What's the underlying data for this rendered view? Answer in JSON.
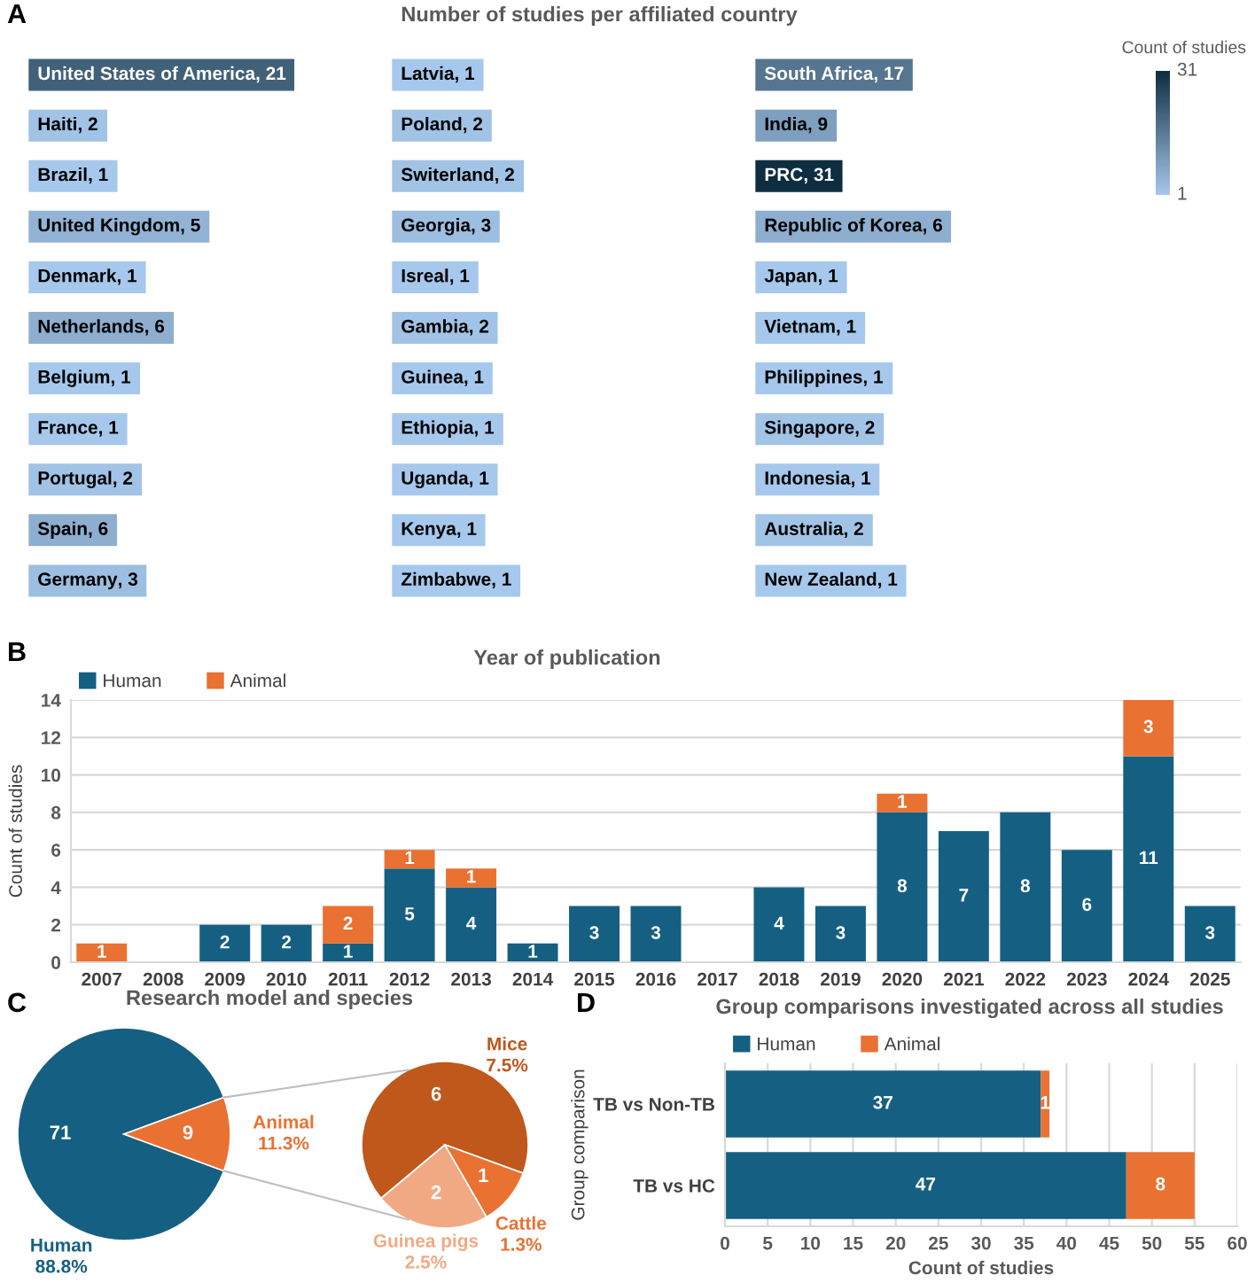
{
  "chart_data": [
    {
      "type": "other",
      "title": "Number of studies per affiliated country",
      "annotations": [
        "A",
        "31",
        "1"
      ],
      "categories": [
        "United States of America",
        "Haiti",
        "Brazil",
        "United Kingdom",
        "Denmark",
        "Netherlands",
        "Belgium",
        "France",
        "Portugal",
        "Spain",
        "Germany",
        "Latvia",
        "Poland",
        "Switerland",
        "Georgia",
        "Isreal",
        "Gambia",
        "Guinea",
        "Ethiopia",
        "Uganda",
        "Kenya",
        "Zimbabwe",
        "South Africa",
        "India",
        "PRC",
        "Republic of Korea",
        "Japan",
        "Vietnam",
        "Philippines",
        "Singapore",
        "Indonesia",
        "Australia",
        "New Zealand"
      ],
      "values": [
        21,
        2,
        1,
        5,
        1,
        6,
        1,
        1,
        2,
        6,
        3,
        1,
        2,
        2,
        3,
        1,
        2,
        1,
        1,
        1,
        1,
        1,
        17,
        9,
        31,
        6,
        1,
        1,
        1,
        2,
        1,
        2,
        1
      ],
      "value_labels": [
        ", 21",
        ", 2",
        ", 1",
        ", 5",
        ", 1",
        ", 6",
        ", 1",
        ", 1",
        ", 2",
        ", 6",
        ", 3",
        ", 1",
        ", 2",
        ", 2",
        ", 3",
        ", 1",
        ", 2",
        ", 1",
        ", 1",
        ", 1",
        ", 1",
        ", 1",
        ", 17",
        ", 9",
        ", 31",
        ", 6",
        ", 1",
        ", 1",
        ", 1",
        ", 2",
        ", 1",
        ", 2",
        ", 1"
      ],
      "colors": [
        "#416179",
        "#a1c3e6",
        "#a6c8ec",
        "#92b3d5",
        "#a6c8ec",
        "#8daecf",
        "#a6c8ec",
        "#a6c8ec",
        "#a1c3e6",
        "#8daecf",
        "#9cbee0",
        "#a6c8ec",
        "#a1c3e6",
        "#a1c3e6",
        "#9cbee0",
        "#a6c8ec",
        "#a1c3e6",
        "#a6c8ec",
        "#a6c8ec",
        "#a6c8ec",
        "#a6c8ec",
        "#a6c8ec",
        "#567590",
        "#7e9fbe",
        "#0f2d40",
        "#8daecf",
        "#a6c8ec",
        "#a6c8ec",
        "#a6c8ec",
        "#a1c3e6",
        "#a6c8ec",
        "#a1c3e6",
        "#a6c8ec"
      ],
      "clabel": "Count of studies"
    },
    {
      "type": "bar",
      "title": "Year of publication",
      "annotations": [
        "B"
      ],
      "ylabel": "Count of studies",
      "categories": [
        "2007",
        "2008",
        "2009",
        "2010",
        "2011",
        "2012",
        "2013",
        "2014",
        "2015",
        "2016",
        "2017",
        "2018",
        "2019",
        "2020",
        "2021",
        "2022",
        "2023",
        "2024",
        "2025"
      ],
      "stacked": true,
      "series": [
        {
          "name": "Human",
          "color": "#156082",
          "values": [
            null,
            null,
            2,
            2,
            1,
            5,
            4,
            1,
            3,
            3,
            null,
            4,
            3,
            8,
            7,
            8,
            6,
            11,
            3
          ]
        },
        {
          "name": "Animal",
          "color": "#e97132",
          "values": [
            1,
            null,
            null,
            null,
            2,
            1,
            1,
            null,
            null,
            null,
            null,
            null,
            null,
            1,
            null,
            null,
            null,
            3,
            null
          ]
        }
      ],
      "ylim": [
        0,
        14
      ],
      "yticks": [
        0,
        2,
        4,
        6,
        8,
        10,
        12,
        14
      ],
      "grid": "y",
      "legend": "top left",
      "data_labels": true
    },
    {
      "type": "pie",
      "title": "Research model and species",
      "annotations": [
        "C"
      ],
      "categories": [
        "Human\n88.8%",
        "Animal\n11.3%"
      ],
      "values": [
        71,
        9
      ],
      "colors": [
        "#156082",
        "#e97132"
      ],
      "data_labels": true
    },
    {
      "type": "pie",
      "categories": [
        "Mice\n7.5%",
        "Guinea pigs\n2.5%",
        "Cattle\n1.3%"
      ],
      "values": [
        6,
        2,
        1
      ],
      "colors": [
        "#c0571b",
        "#f1a983",
        "#e97132"
      ],
      "data_labels": true
    },
    {
      "type": "bar",
      "orientation": "horizontal",
      "stacked": true,
      "title": "Group comparisons investigated across all studies",
      "annotations": [
        "D"
      ],
      "xlabel": "Count of studies",
      "ylabel": "Group comparison",
      "categories": [
        "TB vs Non-TB",
        "TB vs HC"
      ],
      "series": [
        {
          "name": "Human",
          "color": "#156082",
          "values": [
            37,
            47
          ]
        },
        {
          "name": "Animal",
          "color": "#e97132",
          "values": [
            1,
            8
          ]
        }
      ],
      "xlim": [
        0,
        60
      ],
      "xticks": [
        0,
        5,
        10,
        15,
        20,
        25,
        30,
        35,
        40,
        45,
        50,
        55,
        60
      ],
      "grid": "x",
      "legend": "top left",
      "data_labels": true
    }
  ]
}
